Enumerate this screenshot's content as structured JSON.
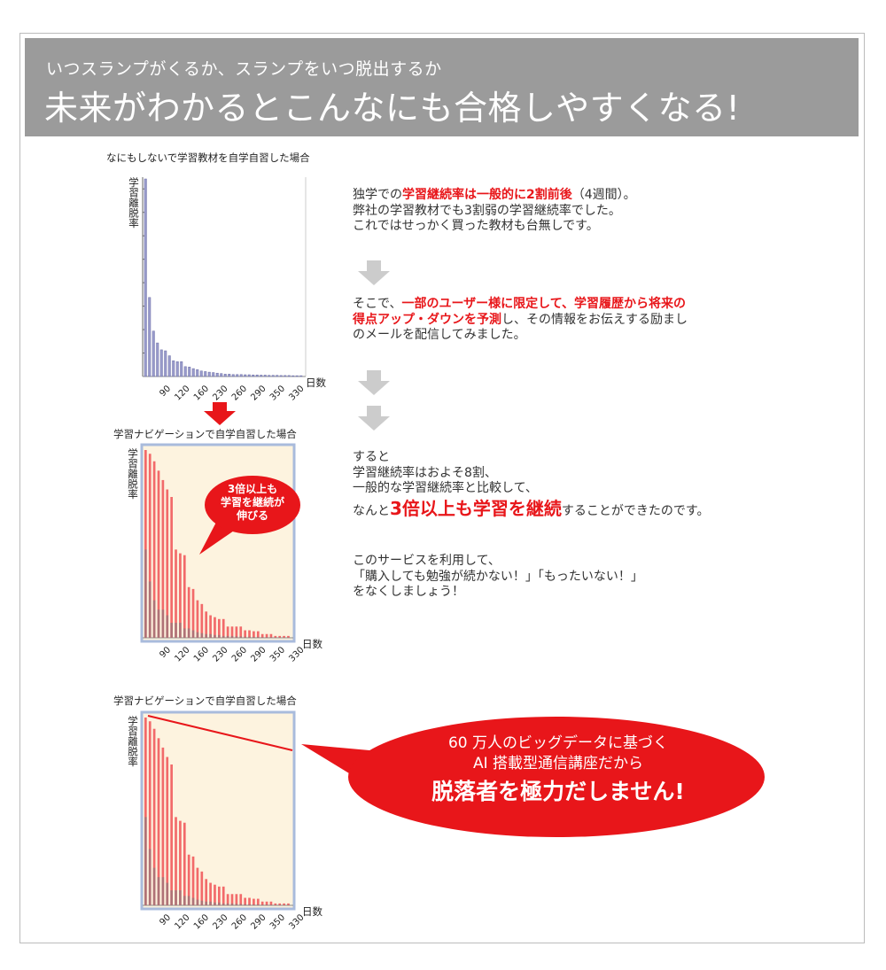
{
  "header": {
    "subtitle": "いつスランプがくるか、スランプをいつ脱出するか",
    "title": "未来がわかるとこんなにも合格しやすくなる!"
  },
  "charts": [
    {
      "title": "なにもしないで学習教材を自学自習した場合",
      "ylabel": "学習離脱率",
      "xlabel": "日数",
      "xticks": [
        "90",
        "120",
        "160",
        "230",
        "260",
        "290",
        "350",
        "330"
      ],
      "bar_color": "#9a9ccc",
      "series": [
        {
          "values": [
            1.0,
            0.4,
            0.23,
            0.17,
            0.135,
            0.13,
            0.105,
            0.08,
            0.075,
            0.075,
            0.05,
            0.048,
            0.04,
            0.035,
            0.028,
            0.025,
            0.022,
            0.02,
            0.017,
            0.015,
            0.012,
            0.012,
            0.01,
            0.01,
            0.01,
            0.009,
            0.009,
            0.008,
            0.008,
            0.007,
            0.007,
            0.006,
            0.006,
            0.006,
            0.005,
            0.005,
            0.005,
            0.004,
            0.004,
            0.004
          ]
        }
      ]
    },
    {
      "title": "学習ナビゲーションで自学自習した場合",
      "ylabel": "学習離脱率",
      "xlabel": "日数",
      "xticks": [
        "90",
        "120",
        "160",
        "230",
        "260",
        "290",
        "350",
        "330"
      ],
      "bar_color": "#f26a6a",
      "bubble": [
        "3倍以上も",
        "学習を継続が",
        "伸びる"
      ],
      "series": [
        {
          "values": [
            1.0,
            0.98,
            0.94,
            0.89,
            0.84,
            0.79,
            0.75,
            0.47,
            0.45,
            0.44,
            0.27,
            0.26,
            0.2,
            0.18,
            0.14,
            0.12,
            0.11,
            0.1,
            0.1,
            0.06,
            0.06,
            0.06,
            0.06,
            0.04,
            0.04,
            0.035,
            0.035,
            0.02,
            0.02,
            0.02,
            0.01,
            0.01,
            0.01,
            0.01
          ]
        },
        {
          "values": [
            0.47,
            0.3,
            0.2,
            0.15,
            0.15,
            0.12,
            0.08,
            0.08,
            0.08,
            0.05,
            0.05,
            0.04,
            0.03,
            0.025,
            0.02,
            0.02,
            0.015,
            0.015,
            0.01,
            0.01,
            0.01,
            0.008,
            0.008,
            0.006,
            0.006,
            0.005,
            0.005,
            0.004,
            0.004,
            0.004,
            0.003,
            0.003,
            0.003,
            0.003
          ]
        }
      ]
    },
    {
      "title": "学習ナビゲーションで自学自習した場合",
      "ylabel": "学習離脱率",
      "xlabel": "日数",
      "xticks": [
        "90",
        "120",
        "160",
        "230",
        "260",
        "290",
        "350",
        "330"
      ],
      "bar_color": "#f26a6a",
      "series": [
        {
          "values": [
            1.0,
            0.98,
            0.94,
            0.89,
            0.84,
            0.79,
            0.75,
            0.47,
            0.45,
            0.44,
            0.27,
            0.26,
            0.2,
            0.18,
            0.14,
            0.12,
            0.11,
            0.1,
            0.1,
            0.06,
            0.06,
            0.06,
            0.06,
            0.04,
            0.04,
            0.035,
            0.035,
            0.02,
            0.02,
            0.02,
            0.01,
            0.01,
            0.01,
            0.01
          ]
        },
        {
          "values": [
            0.47,
            0.3,
            0.2,
            0.15,
            0.15,
            0.12,
            0.08,
            0.08,
            0.08,
            0.05,
            0.05,
            0.04,
            0.03,
            0.025,
            0.02,
            0.02,
            0.015,
            0.015,
            0.01,
            0.01,
            0.01,
            0.008,
            0.008,
            0.006,
            0.006,
            0.005,
            0.005,
            0.004,
            0.004,
            0.004,
            0.003,
            0.003,
            0.003,
            0.003
          ]
        }
      ]
    }
  ],
  "text": {
    "p1": [
      [
        "独学での",
        ""
      ],
      [
        "学習継続率は一般的に2割前後",
        "red"
      ],
      [
        "（4週間）。",
        ""
      ]
    ],
    "p1b": "弊社の学習教材でも3割弱の学習継続率でした。",
    "p1c": "これではせっかく買った教材も台無しです。",
    "p2a_1": "そこで、",
    "p2a_2": "一部のユーザー様に限定して、学習履歴から将来の",
    "p2b_1": "得点アップ・ダウンを予測",
    "p2b_2": "し、その情報をお伝えする励まし",
    "p2c": "のメールを配信してみました。",
    "p3a": "すると",
    "p3b": "学習継続率はおよそ8割、",
    "p3c": "一般的な学習継続率と比較して、",
    "p3d_1": "なんと",
    "p3d_2": "3倍以上も学習を継続",
    "p3d_3": "することができたのです。",
    "p4a": "このサービスを利用して、",
    "p4b": "「購入しても勉強が続かない！」「もったいない！」",
    "p4c": "をなくしましょう！"
  },
  "callout": {
    "line1": "60 万人のビッグデータに基づく",
    "line2": "AI 搭載型通信講座だから",
    "line3": "脱落者を極力だしません!"
  },
  "colors": {
    "accent": "#e8161a",
    "header_bg": "#9b9b9b",
    "arrow": "#cccccc"
  }
}
